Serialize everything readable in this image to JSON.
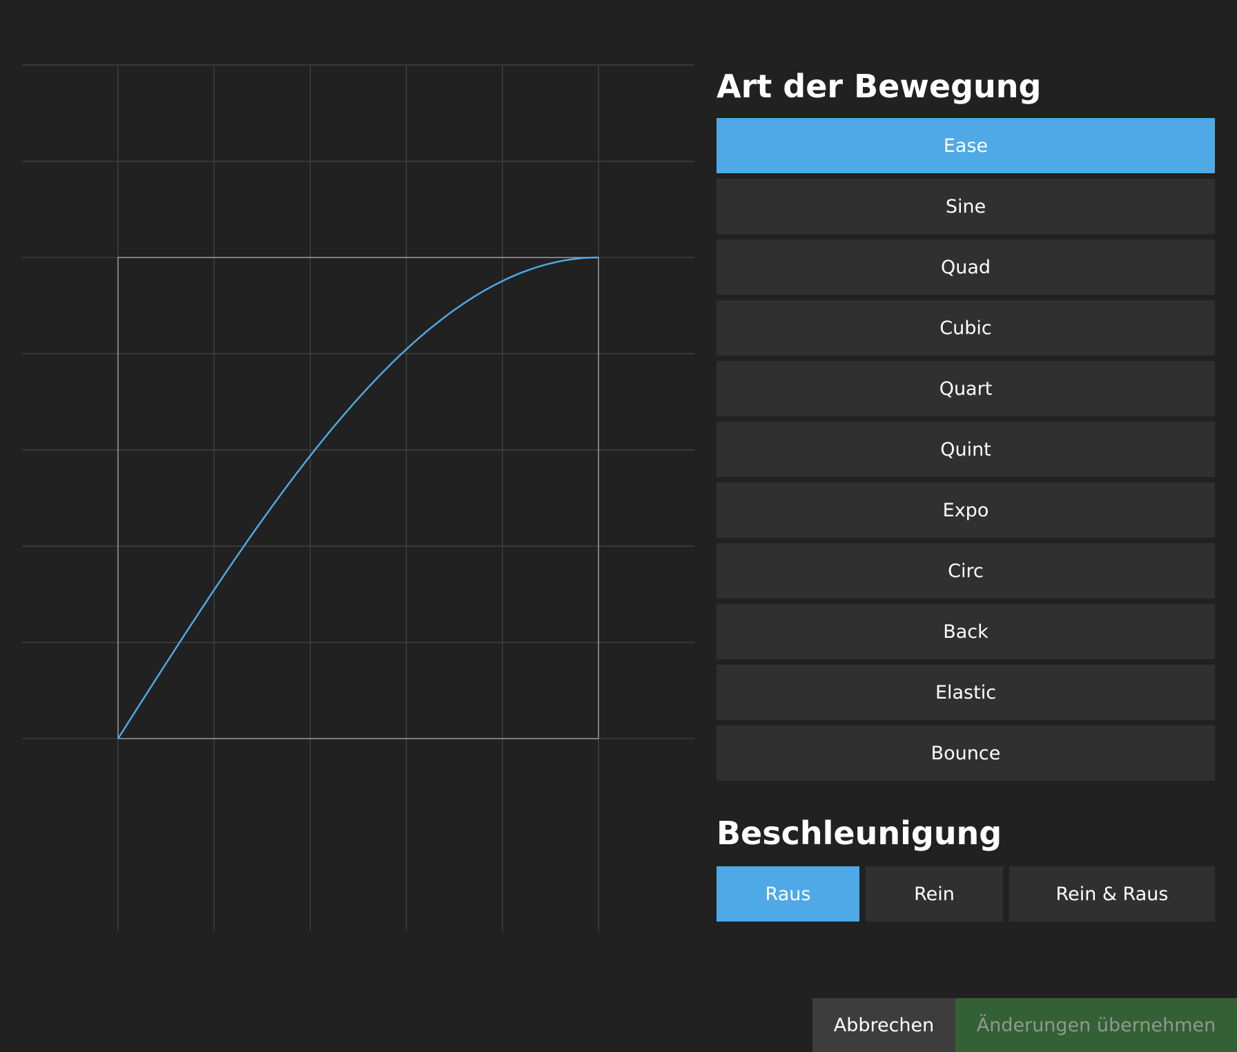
{
  "motion_type": {
    "title": "Art der Bewegung",
    "options": [
      "Ease",
      "Sine",
      "Quad",
      "Cubic",
      "Quart",
      "Quint",
      "Expo",
      "Circ",
      "Back",
      "Elastic",
      "Bounce"
    ],
    "selected": "Ease"
  },
  "acceleration": {
    "title": "Beschleunigung",
    "options": [
      "Raus",
      "Rein",
      "Rein & Raus"
    ],
    "selected": "Raus"
  },
  "footer": {
    "cancel_label": "Abbrechen",
    "apply_label": "Änderungen übernehmen"
  },
  "colors": {
    "accent": "#4ea9e6",
    "apply": "#346035",
    "background": "#212121",
    "button": "#303030"
  },
  "chart_data": {
    "type": "line",
    "curve": "ease-out",
    "xlim": [
      0,
      1
    ],
    "ylim": [
      0,
      1
    ],
    "grid": true,
    "series": [
      {
        "x": [
          0,
          0.1,
          0.2,
          0.3,
          0.4,
          0.5,
          0.6,
          0.7,
          0.8,
          0.9,
          1.0
        ],
        "y": [
          0,
          0.156,
          0.309,
          0.454,
          0.588,
          0.707,
          0.809,
          0.891,
          0.951,
          0.988,
          1.0
        ]
      }
    ]
  }
}
